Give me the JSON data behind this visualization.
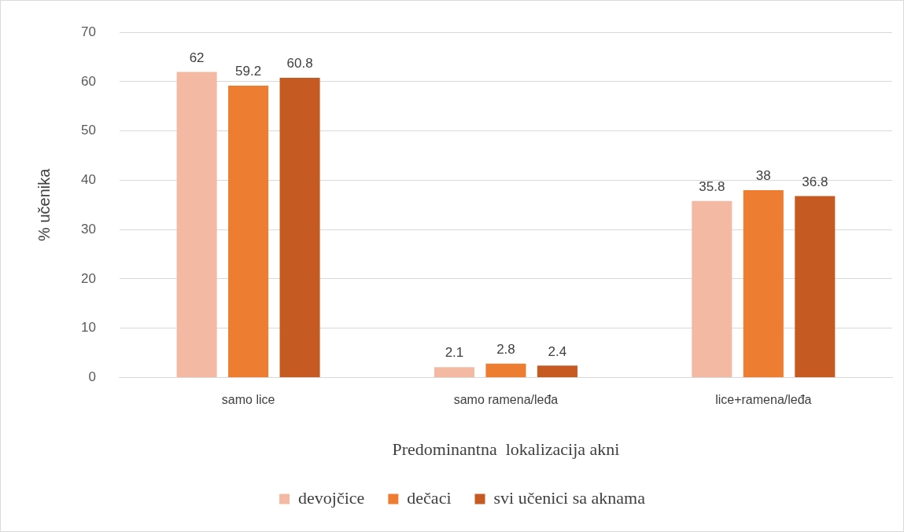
{
  "chart_data": {
    "type": "bar",
    "xlabel": "Predominantna  lokalizacija akni",
    "ylabel": "% učenika",
    "categories": [
      "samo lice",
      "samo ramena/leđa",
      "lice+ramena/leđa"
    ],
    "series": [
      {
        "name": "devojčice",
        "color": "#f4b9a2",
        "values": [
          62,
          2.1,
          35.8
        ]
      },
      {
        "name": "dečaci",
        "color": "#ed7d31",
        "values": [
          59.2,
          2.8,
          38
        ]
      },
      {
        "name": "svi učenici sa aknama",
        "color": "#c55a22",
        "values": [
          60.8,
          2.4,
          36.8
        ]
      }
    ],
    "ylim": [
      0,
      70
    ],
    "yticks": [
      0,
      10,
      20,
      30,
      40,
      50,
      60,
      70
    ],
    "grid": "y",
    "legend": "bottom",
    "data_labels": true
  }
}
